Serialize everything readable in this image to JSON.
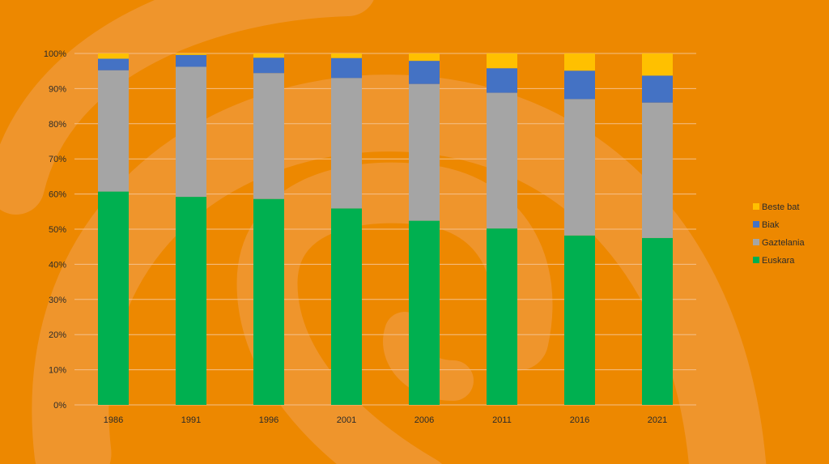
{
  "chart_data": {
    "type": "bar",
    "stacked": true,
    "percent_stacked": true,
    "categories": [
      "1986",
      "1991",
      "1996",
      "2001",
      "2006",
      "2011",
      "2016",
      "2021"
    ],
    "series": [
      {
        "name": "Euskara",
        "color": "#00B050",
        "values": [
          60.7,
          59.2,
          58.6,
          55.9,
          52.4,
          50.2,
          48.2,
          47.5
        ]
      },
      {
        "name": "Gaztelania",
        "color": "#A5A5A5",
        "values": [
          34.5,
          37.0,
          35.8,
          37.1,
          38.9,
          38.6,
          38.8,
          38.5
        ]
      },
      {
        "name": "Biak",
        "color": "#4472C4",
        "values": [
          3.3,
          3.4,
          4.4,
          5.7,
          6.6,
          7.0,
          8.1,
          7.7
        ]
      },
      {
        "name": "Beste bat",
        "color": "#FFC000",
        "values": [
          1.5,
          0.4,
          1.2,
          1.3,
          2.1,
          4.2,
          4.9,
          6.3
        ]
      }
    ],
    "y_tick_labels": [
      "0%",
      "10%",
      "20%",
      "30%",
      "40%",
      "50%",
      "60%",
      "70%",
      "80%",
      "90%",
      "100%"
    ],
    "ylim": [
      0,
      100
    ],
    "grid": true,
    "legend_position": "right",
    "legend_order": [
      "Beste bat",
      "Biak",
      "Gaztelania",
      "Euskara"
    ],
    "title": "",
    "xlabel": "",
    "ylabel": ""
  },
  "colors": {
    "background": "#ED8800",
    "swirl": "#F0A050",
    "gridline": "#F4C08A",
    "text": "#2b2b2b"
  }
}
